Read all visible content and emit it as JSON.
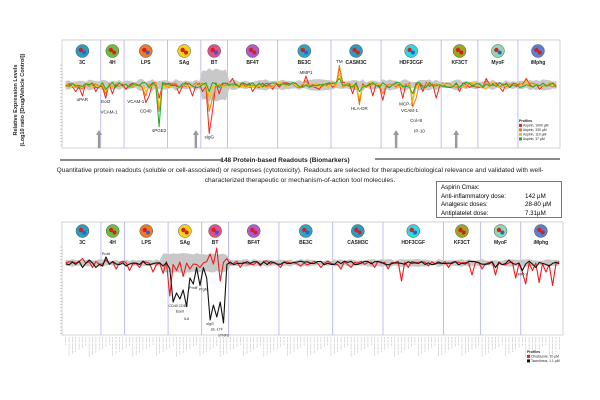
{
  "chart_data": [
    {
      "type": "line",
      "title": "",
      "ylabel": "Relative Expression Levels (Log10 ratio [Drug/Vehicle Control])",
      "ylabel_lines": [
        "Relative Expression Levels",
        "(Log10 ratio [Drug/Vehicle Control])"
      ],
      "ylim": [
        -2.5,
        1.5
      ],
      "n_readouts": 148,
      "systems": [
        "3C",
        "4H",
        "LPS",
        "SAg",
        "BT",
        "BF4T",
        "BE3C",
        "CASM3C",
        "HDF3CGF",
        "KF3CT",
        "MyoF",
        "iMphg"
      ],
      "system_readout_counts": [
        11,
        7,
        13,
        10,
        8,
        15,
        16,
        15,
        18,
        11,
        12,
        12
      ],
      "legend_title": "Profiles",
      "legend_position": "bottom-right",
      "series": [
        {
          "name": "Aspirin, 1000 uM",
          "color": "#e8281e",
          "points": [
            [
              3,
              -0.3
            ],
            [
              5,
              -0.5
            ],
            [
              9,
              -0.3
            ],
            [
              12,
              -0.6
            ],
            [
              14,
              -0.4
            ],
            [
              18,
              -0.2
            ],
            [
              24,
              -0.8
            ],
            [
              25,
              -0.5
            ],
            [
              28,
              -0.6
            ],
            [
              34,
              -0.4
            ],
            [
              38,
              -0.5
            ],
            [
              41,
              -0.3
            ],
            [
              43,
              -2.2
            ],
            [
              44,
              -1.2
            ],
            [
              46,
              -0.4
            ],
            [
              50,
              0.3
            ],
            [
              56,
              -0.3
            ],
            [
              62,
              -0.2
            ],
            [
              72,
              0.4
            ],
            [
              76,
              -0.2
            ],
            [
              82,
              0.8
            ],
            [
              86,
              -0.4
            ],
            [
              88,
              -0.8
            ],
            [
              92,
              -0.5
            ],
            [
              95,
              -0.7
            ],
            [
              101,
              -0.6
            ],
            [
              104,
              -0.7
            ],
            [
              107,
              -0.3
            ],
            [
              111,
              -0.6
            ],
            [
              118,
              -0.3
            ],
            [
              126,
              0.3
            ],
            [
              131,
              -0.3
            ],
            [
              138,
              0.3
            ],
            [
              142,
              -0.2
            ]
          ]
        },
        {
          "name": "Aspirin, 330 uM",
          "color": "#f07a10",
          "points": [
            [
              5,
              -0.2
            ],
            [
              12,
              -0.4
            ],
            [
              24,
              -0.5
            ],
            [
              28,
              -1.2
            ],
            [
              43,
              -1.2
            ],
            [
              44,
              -0.6
            ],
            [
              72,
              0.2
            ],
            [
              82,
              0.9
            ],
            [
              88,
              -0.9
            ],
            [
              95,
              -0.4
            ],
            [
              104,
              -1.0
            ],
            [
              105,
              -0.6
            ],
            [
              126,
              0.2
            ],
            [
              138,
              0.2
            ]
          ]
        },
        {
          "name": "Aspirin, 110 uM",
          "color": "#f5c400",
          "points": [
            [
              12,
              -0.3
            ],
            [
              24,
              -0.3
            ],
            [
              28,
              -1.0
            ],
            [
              43,
              -0.6
            ],
            [
              82,
              0.5
            ],
            [
              88,
              -0.6
            ],
            [
              104,
              -0.7
            ],
            [
              126,
              -0.2
            ],
            [
              138,
              0.2
            ]
          ]
        },
        {
          "name": "Aspirin, 37 uM",
          "color": "#22a82a",
          "points": [
            [
              12,
              -0.2
            ],
            [
              28,
              -1.9
            ],
            [
              43,
              -0.3
            ],
            [
              82,
              0.3
            ],
            [
              88,
              -0.3
            ],
            [
              104,
              -0.4
            ]
          ]
        }
      ],
      "annotations": [
        {
          "label": "uPAR",
          "readout": 5,
          "value": -0.5
        },
        {
          "label": "Eot3",
          "readout": 12,
          "value": -0.6
        },
        {
          "label": "VCAM-1",
          "readout": 13,
          "value": -0.6
        },
        {
          "label": "VCAM-1",
          "readout": 21,
          "value": -0.6
        },
        {
          "label": "CD40",
          "readout": 24,
          "value": -0.8
        },
        {
          "label": "sPGE2",
          "readout": 28,
          "value": -1.9
        },
        {
          "label": "sIgG",
          "readout": 43,
          "value": -2.2
        },
        {
          "label": "MMP1",
          "readout": 72,
          "value": 0.4
        },
        {
          "label": "TM",
          "readout": 82,
          "value": 0.9
        },
        {
          "label": "HLA-DR",
          "readout": 88,
          "value": -0.9
        },
        {
          "label": "MCP-1",
          "readout": 102,
          "value": -0.7
        },
        {
          "label": "VCAM-1",
          "readout": 103,
          "value": -1.0
        },
        {
          "label": "Col-III",
          "readout": 105,
          "value": -1.0
        },
        {
          "label": "IP-10",
          "readout": 106,
          "value": -1.0
        }
      ],
      "arrows_at_readouts": [
        10,
        39,
        99,
        117
      ]
    },
    {
      "type": "line",
      "ylim": [
        -4.5,
        1.5
      ],
      "n_readouts": 148,
      "systems": [
        "3C",
        "4H",
        "LPS",
        "SAg",
        "BT",
        "BF4T",
        "BE3C",
        "CASM3C",
        "HDF3CGF",
        "KF3CT",
        "MyoF",
        "iMphg"
      ],
      "system_readout_counts": [
        11,
        7,
        13,
        10,
        8,
        15,
        16,
        15,
        18,
        11,
        12,
        12
      ],
      "legend_title": "Profiles",
      "legend_position": "bottom-right",
      "series": [
        {
          "name": "Cilostazole, 10 uM",
          "color": "#ee1c1c",
          "points": [
            [
              2,
              0.1
            ],
            [
              5,
              0.3
            ],
            [
              8,
              -0.3
            ],
            [
              12,
              0.2
            ],
            [
              15,
              -0.4
            ],
            [
              19,
              -0.5
            ],
            [
              22,
              -0.3
            ],
            [
              26,
              -0.6
            ],
            [
              29,
              -0.7
            ],
            [
              31,
              -2.2
            ],
            [
              33,
              -0.5
            ],
            [
              35,
              -0.9
            ],
            [
              37,
              -0.4
            ],
            [
              40,
              -0.3
            ],
            [
              43,
              0.6
            ],
            [
              45,
              1.0
            ],
            [
              46,
              -1.2
            ],
            [
              48,
              0.3
            ],
            [
              52,
              -0.3
            ],
            [
              58,
              -0.2
            ],
            [
              64,
              -0.3
            ],
            [
              70,
              -0.2
            ],
            [
              76,
              -0.3
            ],
            [
              82,
              -0.4
            ],
            [
              85,
              -0.3
            ],
            [
              92,
              -0.3
            ],
            [
              96,
              -0.4
            ],
            [
              100,
              -1.2
            ],
            [
              102,
              -0.3
            ],
            [
              108,
              -0.2
            ],
            [
              114,
              -0.3
            ],
            [
              121,
              -0.8
            ],
            [
              124,
              -0.4
            ],
            [
              128,
              -0.8
            ],
            [
              134,
              -1.0
            ],
            [
              136,
              -0.6
            ],
            [
              137,
              -1.4
            ],
            [
              139,
              -0.5
            ],
            [
              141,
              -1.3
            ],
            [
              143,
              -0.6
            ],
            [
              145,
              -1.5
            ],
            [
              147,
              0.1
            ]
          ]
        },
        {
          "name": "Tacrolimus, 1.1 uM",
          "color": "#111111",
          "points": [
            [
              5,
              -0.3
            ],
            [
              7,
              0.2
            ],
            [
              9,
              -0.3
            ],
            [
              11,
              -0.2
            ],
            [
              12,
              0.4
            ],
            [
              14,
              0.1
            ],
            [
              18,
              -0.2
            ],
            [
              24,
              -0.1
            ],
            [
              29,
              -0.2
            ],
            [
              31,
              -0.4
            ],
            [
              32,
              -2.6
            ],
            [
              33,
              -2.0
            ],
            [
              34,
              -2.4
            ],
            [
              35,
              -1.8
            ],
            [
              36,
              -2.9
            ],
            [
              37,
              -1.0
            ],
            [
              38,
              -1.4
            ],
            [
              39,
              -0.3
            ],
            [
              40,
              -1.5
            ],
            [
              41,
              -0.3
            ],
            [
              42,
              -1.0
            ],
            [
              43,
              -3.8
            ],
            [
              44,
              -2.8
            ],
            [
              45,
              -3.6
            ],
            [
              46,
              -2.6
            ],
            [
              47,
              -4.0
            ],
            [
              48,
              -0.1
            ],
            [
              60,
              -0.1
            ],
            [
              90,
              0.1
            ],
            [
              128,
              -0.3
            ],
            [
              132,
              0.2
            ],
            [
              136,
              -0.5
            ],
            [
              140,
              -0.3
            ],
            [
              144,
              -0.2
            ]
          ]
        }
      ],
      "annotations": [
        {
          "label": "Prolif",
          "readout": 12,
          "value": 0.4
        },
        {
          "label": "CD40",
          "readout": 32,
          "value": -2.6
        },
        {
          "label": "Eselt",
          "readout": 34,
          "value": -2.4
        },
        {
          "label": "CD69",
          "readout": 35,
          "value": -2.6
        },
        {
          "label": "IL8",
          "readout": 36,
          "value": -2.9
        },
        {
          "label": "Prolif",
          "readout": 38,
          "value": -1.4
        },
        {
          "label": "PrgM",
          "readout": 41,
          "value": -1.5
        },
        {
          "label": "sIgG",
          "readout": 43,
          "value": -3.8
        },
        {
          "label": "sIL-17F",
          "readout": 45,
          "value": -3.6
        },
        {
          "label": "sTNFa",
          "readout": 47,
          "value": -4.0
        },
        {
          "label": "MIP-1",
          "readout": 136,
          "value": -0.5
        }
      ]
    }
  ],
  "readouts_section": {
    "heading": "148 Protein-based Readouts (Biomarkers)",
    "description": "Quantitative protein readouts (soluble or cell-associated) or responses (cytotoxicity).  Readouts are selected for therapeutic/biological relevance and validated with well-characterized therapeutic or mechanism-of-action tool molecules."
  },
  "aspirin_box": {
    "title": "Aspirin Cmax:",
    "rows": [
      {
        "label": "Anti-inflammatory dose:",
        "value": "142 µM"
      },
      {
        "label": "Analgesic doses:",
        "value": "28-80 µM"
      },
      {
        "label": "Antiplatelet dose:",
        "value": "7.31µM"
      }
    ]
  },
  "system_colors": {
    "3C": "#2a9ec0",
    "4H": "#6cbf3c",
    "LPS": "#f07a2a",
    "SAg": "#f5d020",
    "BT": "#e0508a",
    "BF4T": "#b05ad0",
    "BE3C": "#2ea6c4",
    "CASM3C": "#2a9cc0",
    "HDF3CGF": "#2ed8e0",
    "KF3CT": "#9aa820",
    "MyoF": "#8fd8b0",
    "iMphg": "#5a80d0"
  }
}
